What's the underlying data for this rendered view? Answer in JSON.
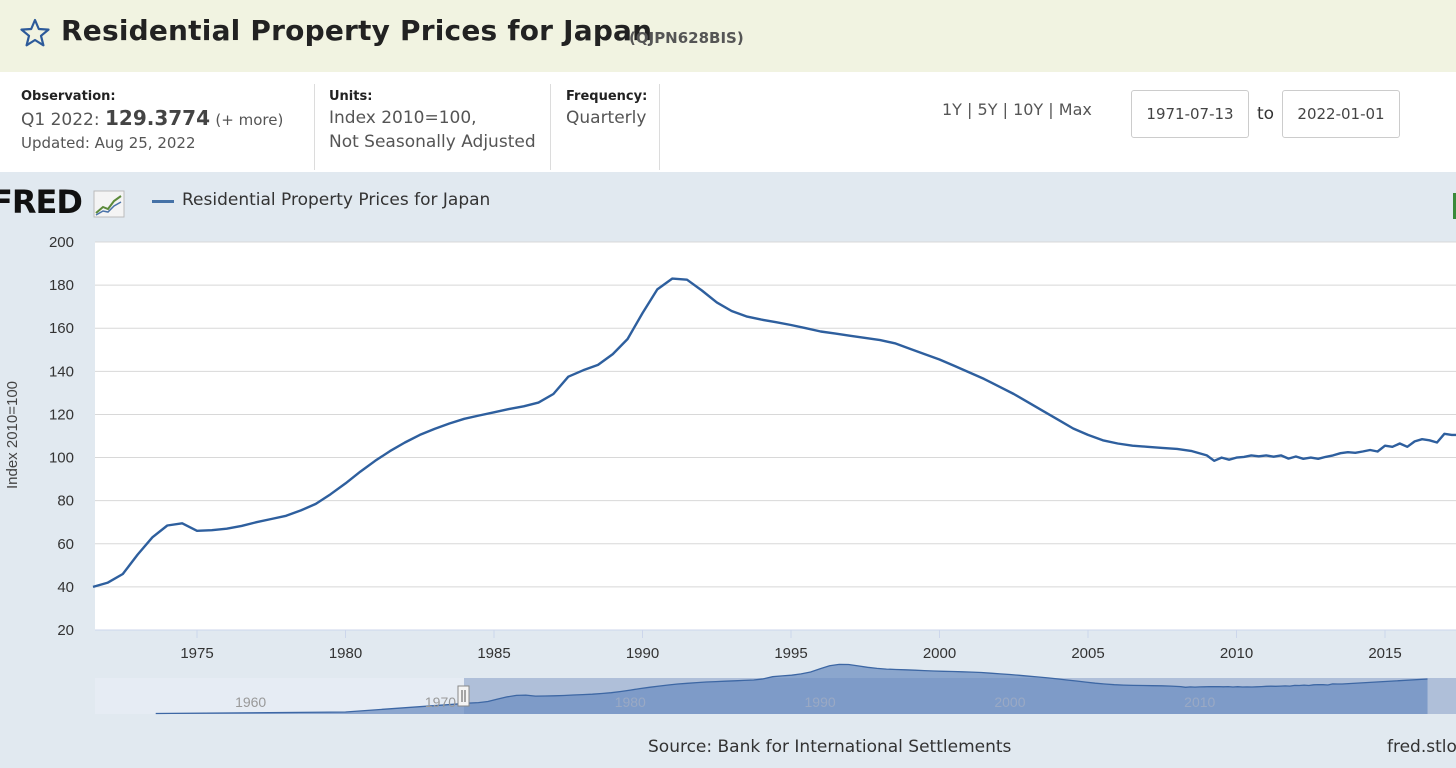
{
  "header": {
    "title": "Residential Property Prices for Japan",
    "series_id": "(QJPN628BIS)"
  },
  "observation": {
    "label": "Observation:",
    "period": "Q1 2022:",
    "value": "129.3774",
    "more": "(+ more)",
    "updated": "Updated: Aug 25, 2022"
  },
  "units": {
    "label": "Units:",
    "line1": "Index 2010=100,",
    "line2": "Not Seasonally Adjusted"
  },
  "frequency": {
    "label": "Frequency:",
    "value": "Quarterly"
  },
  "range_buttons": [
    "1Y",
    "5Y",
    "10Y",
    "Max"
  ],
  "range_sep": "|",
  "date_range": {
    "start": "1971-07-13",
    "to": "to",
    "end": "2022-01-01"
  },
  "chart_header": {
    "logo": "FRED",
    "legend": "Residential Property Prices for Japan"
  },
  "footer": {
    "source": "Source: Bank for International Settlements",
    "url": "fred.stlou"
  },
  "colors": {
    "line": "#2e5f9e",
    "panel": "#e1e9f0",
    "title_bg": "#f1f3e1"
  },
  "chart_data": {
    "type": "line",
    "title": "Residential Property Prices for Japan",
    "ylabel": "Index 2010=100",
    "xlabel": "",
    "ylim": [
      20,
      200
    ],
    "yticks": [
      20,
      40,
      60,
      80,
      100,
      120,
      140,
      160,
      180,
      200
    ],
    "xlim": [
      1971.5,
      2017.5
    ],
    "xticks": [
      1975,
      1980,
      1985,
      1990,
      1995,
      2000,
      2005,
      2010,
      2015
    ],
    "series": [
      {
        "name": "Residential Property Prices for Japan",
        "x": [
          1971.5,
          1972.0,
          1972.5,
          1973.0,
          1973.5,
          1974.0,
          1974.5,
          1975.0,
          1975.5,
          1976.0,
          1976.5,
          1977.0,
          1977.5,
          1978.0,
          1978.5,
          1979.0,
          1979.5,
          1980.0,
          1980.5,
          1981.0,
          1981.5,
          1982.0,
          1982.5,
          1983.0,
          1983.5,
          1984.0,
          1984.5,
          1985.0,
          1985.5,
          1986.0,
          1986.5,
          1987.0,
          1987.5,
          1988.0,
          1988.5,
          1989.0,
          1989.5,
          1990.0,
          1990.5,
          1991.0,
          1991.5,
          1992.0,
          1992.5,
          1993.0,
          1993.5,
          1994.0,
          1994.5,
          1995.0,
          1995.5,
          1996.0,
          1996.5,
          1997.0,
          1997.5,
          1998.0,
          1998.5,
          1999.0,
          1999.5,
          2000.0,
          2000.5,
          2001.0,
          2001.5,
          2002.0,
          2002.5,
          2003.0,
          2003.5,
          2004.0,
          2004.5,
          2005.0,
          2005.5,
          2006.0,
          2006.5,
          2007.0,
          2007.5,
          2008.0,
          2008.5,
          2009.0,
          2009.25,
          2009.5,
          2009.75,
          2010.0,
          2010.25,
          2010.5,
          2010.75,
          2011.0,
          2011.25,
          2011.5,
          2011.75,
          2012.0,
          2012.25,
          2012.5,
          2012.75,
          2013.0,
          2013.25,
          2013.5,
          2013.75,
          2014.0,
          2014.25,
          2014.5,
          2014.75,
          2015.0,
          2015.25,
          2015.5,
          2015.75,
          2016.0,
          2016.25,
          2016.5,
          2016.75,
          2017.0,
          2017.25,
          2017.5
        ],
        "values": [
          40,
          42,
          46,
          55,
          63,
          68.5,
          69.5,
          66,
          66.3,
          67,
          68.3,
          70,
          71.5,
          73,
          75.5,
          78.5,
          83,
          88,
          93.5,
          98.5,
          103,
          107,
          110.5,
          113.3,
          115.8,
          118,
          119.5,
          121,
          122.5,
          123.8,
          125.5,
          129.5,
          137.5,
          140.5,
          143,
          148,
          155,
          167,
          178,
          183,
          182.5,
          177.5,
          172,
          168,
          165.5,
          164,
          162.8,
          161.5,
          160,
          158.5,
          157.5,
          156.5,
          155.5,
          154.5,
          153,
          150.5,
          148,
          145.5,
          142.5,
          139.5,
          136.5,
          133,
          129.5,
          125.5,
          121.5,
          117.5,
          113.5,
          110.5,
          108,
          106.5,
          105.5,
          105,
          104.5,
          104,
          103,
          101,
          98.5,
          100,
          99,
          100,
          100.3,
          101,
          100.6,
          101,
          100.4,
          101,
          99.5,
          100.5,
          99.4,
          100,
          99.4,
          100.3,
          101,
          102,
          102.5,
          102.2,
          102.8,
          103.5,
          102.8,
          105.5,
          105,
          106.5,
          105,
          107.5,
          108.5,
          108,
          107,
          111,
          110.5,
          110.5
        ]
      }
    ],
    "navigator": {
      "labels": [
        "1960",
        "1970",
        "1980",
        "1990",
        "2000",
        "2010"
      ]
    }
  }
}
